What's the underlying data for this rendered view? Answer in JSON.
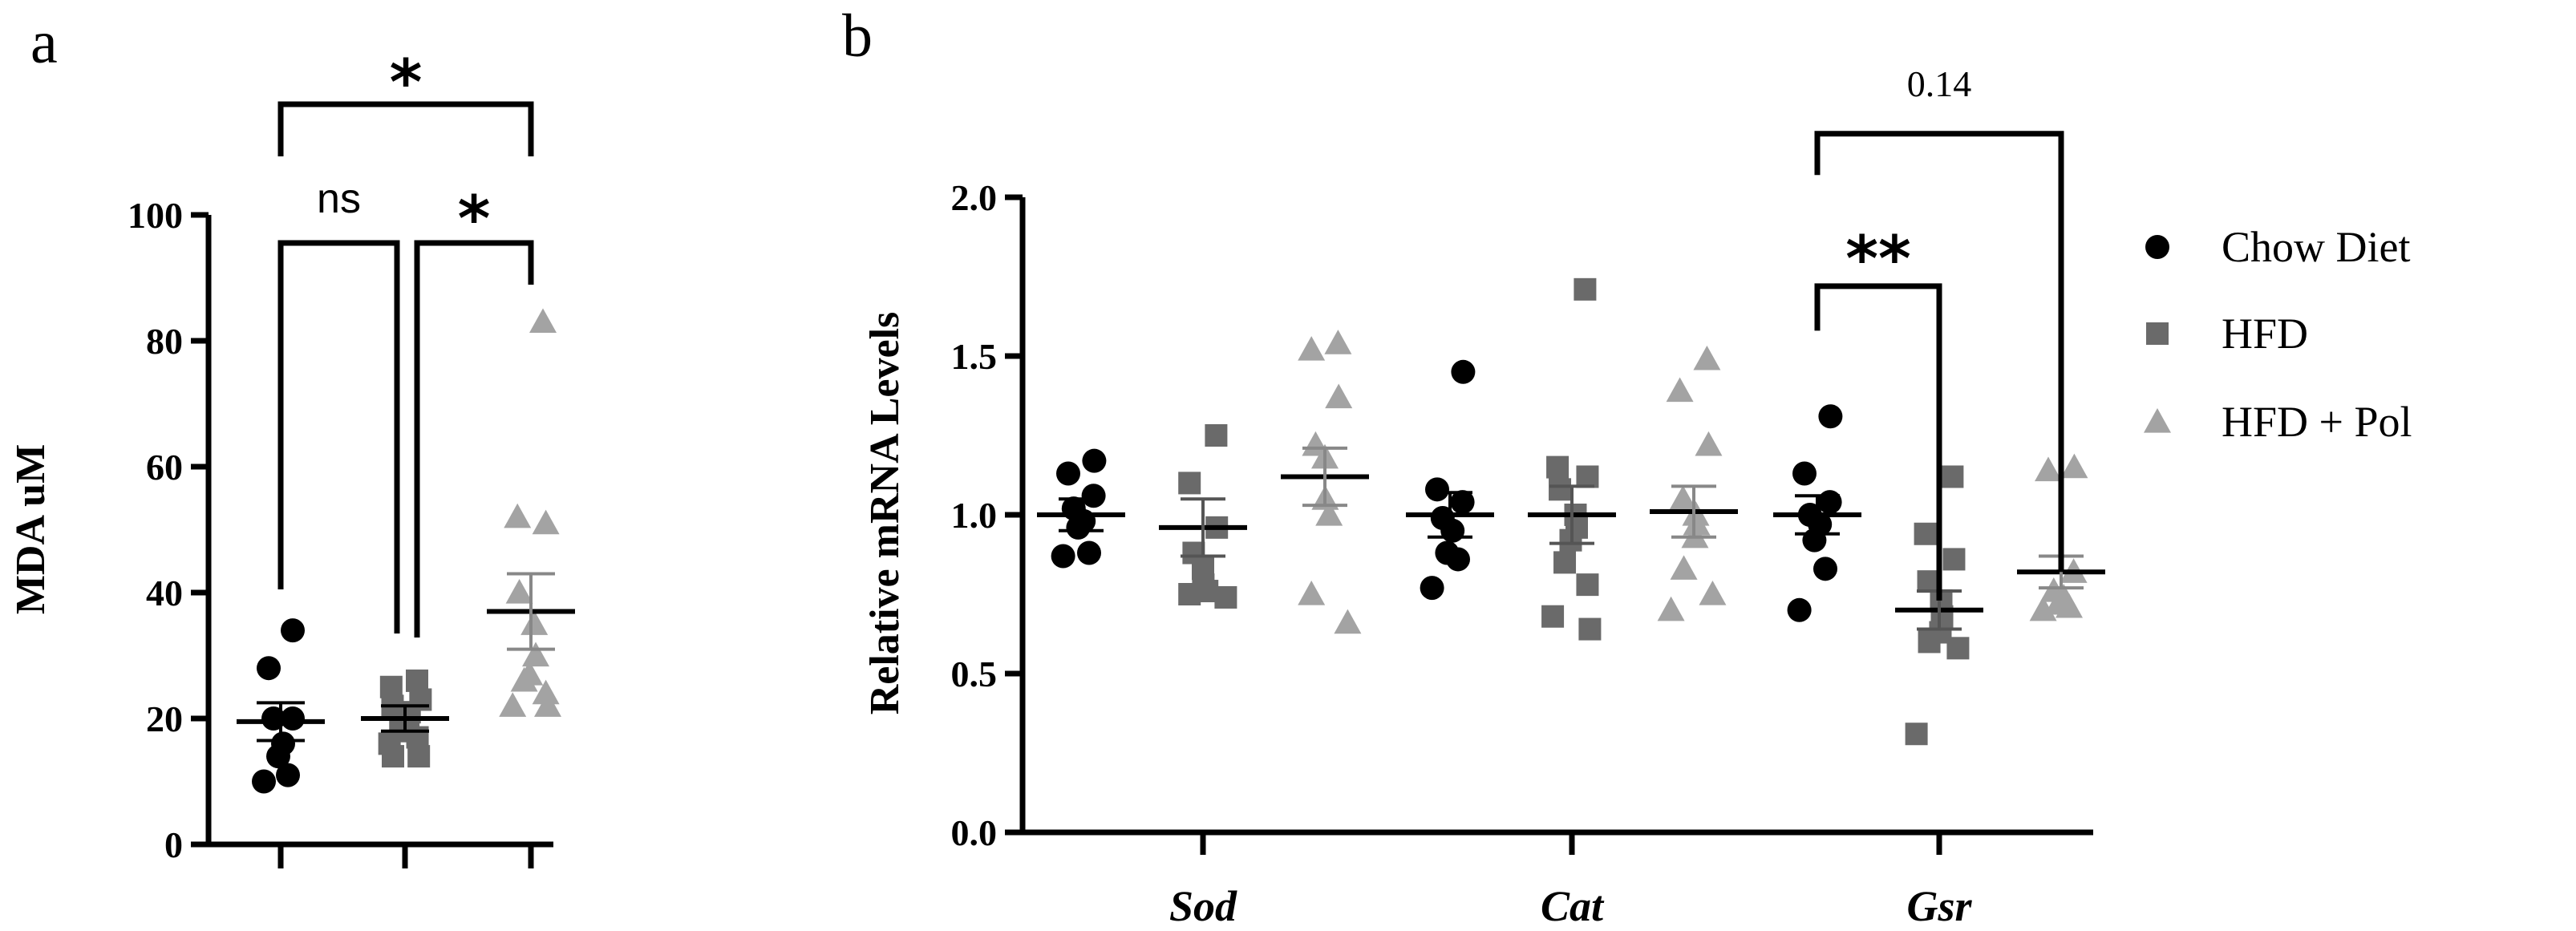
{
  "colors": {
    "chow": "#000000",
    "hfd": "#6a6a6a",
    "hfdpol": "#a3a3a3",
    "axis": "#000000"
  },
  "chart_data": [
    {
      "panel": "a",
      "type": "scatter",
      "ylabel": "MDA uM",
      "ylim": [
        0,
        100
      ],
      "yticks": [
        0,
        20,
        40,
        60,
        80,
        100
      ],
      "series": [
        {
          "name": "Chow Diet",
          "marker": "circle",
          "mean": 19.5,
          "sem": 3,
          "values": [
            34,
            28,
            20,
            20,
            16,
            14,
            11,
            10
          ]
        },
        {
          "name": "HFD",
          "marker": "square",
          "mean": 20,
          "sem": 2,
          "values": [
            26,
            25,
            23,
            22,
            21,
            20,
            19,
            18,
            17,
            16,
            14,
            14
          ]
        },
        {
          "name": "HFD + Pol",
          "marker": "triangle",
          "mean": 37,
          "sem": 6,
          "values": [
            83,
            52,
            51,
            40,
            35,
            30,
            27,
            26,
            24,
            22,
            22
          ]
        }
      ],
      "comparisons": [
        {
          "from": 0,
          "to": 2,
          "label": "*"
        },
        {
          "from": 0,
          "to": 1,
          "label": "ns"
        },
        {
          "from": 1,
          "to": 2,
          "label": "*"
        }
      ]
    },
    {
      "panel": "b",
      "type": "scatter",
      "ylabel": "Relative mRNA Levels",
      "ylim": [
        0,
        2
      ],
      "yticks": [
        "0.0",
        "0.5",
        "1.0",
        "1.5",
        "2.0"
      ],
      "categories": [
        "Sod",
        "Cat",
        "Gsr"
      ],
      "legend": [
        "Chow Diet",
        "HFD",
        "HFD + Pol"
      ],
      "groups": [
        {
          "category": "Sod",
          "series": [
            {
              "name": "Chow Diet",
              "mean": 1.0,
              "sem": 0.05,
              "values": [
                1.17,
                1.13,
                1.06,
                1.02,
                0.98,
                0.96,
                0.88,
                0.87
              ]
            },
            {
              "name": "HFD",
              "mean": 0.96,
              "sem": 0.09,
              "values": [
                1.25,
                1.1,
                0.96,
                0.88,
                0.83,
                0.78,
                0.76,
                0.75,
                0.74
              ]
            },
            {
              "name": "HFD + Pol",
              "mean": 1.12,
              "sem": 0.09,
              "values": [
                1.54,
                1.52,
                1.37,
                1.22,
                1.18,
                1.05,
                1.0,
                0.75,
                0.66
              ]
            }
          ]
        },
        {
          "category": "Cat",
          "series": [
            {
              "name": "Chow Diet",
              "mean": 1.0,
              "sem": 0.07,
              "values": [
                1.45,
                1.08,
                1.04,
                0.99,
                0.95,
                0.88,
                0.86,
                0.77
              ]
            },
            {
              "name": "HFD",
              "mean": 1.0,
              "sem": 0.09,
              "values": [
                1.71,
                1.15,
                1.12,
                1.08,
                1.0,
                0.96,
                0.92,
                0.85,
                0.78,
                0.68,
                0.64
              ]
            },
            {
              "name": "HFD + Pol",
              "mean": 1.01,
              "sem": 0.08,
              "values": [
                1.49,
                1.39,
                1.22,
                1.05,
                1.0,
                0.97,
                0.93,
                0.83,
                0.75,
                0.7
              ]
            }
          ]
        },
        {
          "category": "Gsr",
          "series": [
            {
              "name": "Chow Diet",
              "mean": 1.0,
              "sem": 0.06,
              "values": [
                1.31,
                1.13,
                1.04,
                1.0,
                0.97,
                0.92,
                0.83,
                0.7
              ]
            },
            {
              "name": "HFD",
              "mean": 0.7,
              "sem": 0.06,
              "values": [
                1.12,
                0.94,
                0.86,
                0.79,
                0.73,
                0.68,
                0.63,
                0.6,
                0.58,
                0.31
              ]
            },
            {
              "name": "HFD + Pol",
              "mean": 0.82,
              "sem": 0.05,
              "values": [
                1.15,
                1.14,
                0.82,
                0.76,
                0.74,
                0.72,
                0.71,
                0.7
              ]
            }
          ]
        }
      ],
      "comparisons": [
        {
          "category": "Gsr",
          "from": 0,
          "to": 1,
          "label": "**"
        },
        {
          "category": "Gsr",
          "from": 0,
          "to": 2,
          "label": "0.14"
        }
      ]
    }
  ]
}
